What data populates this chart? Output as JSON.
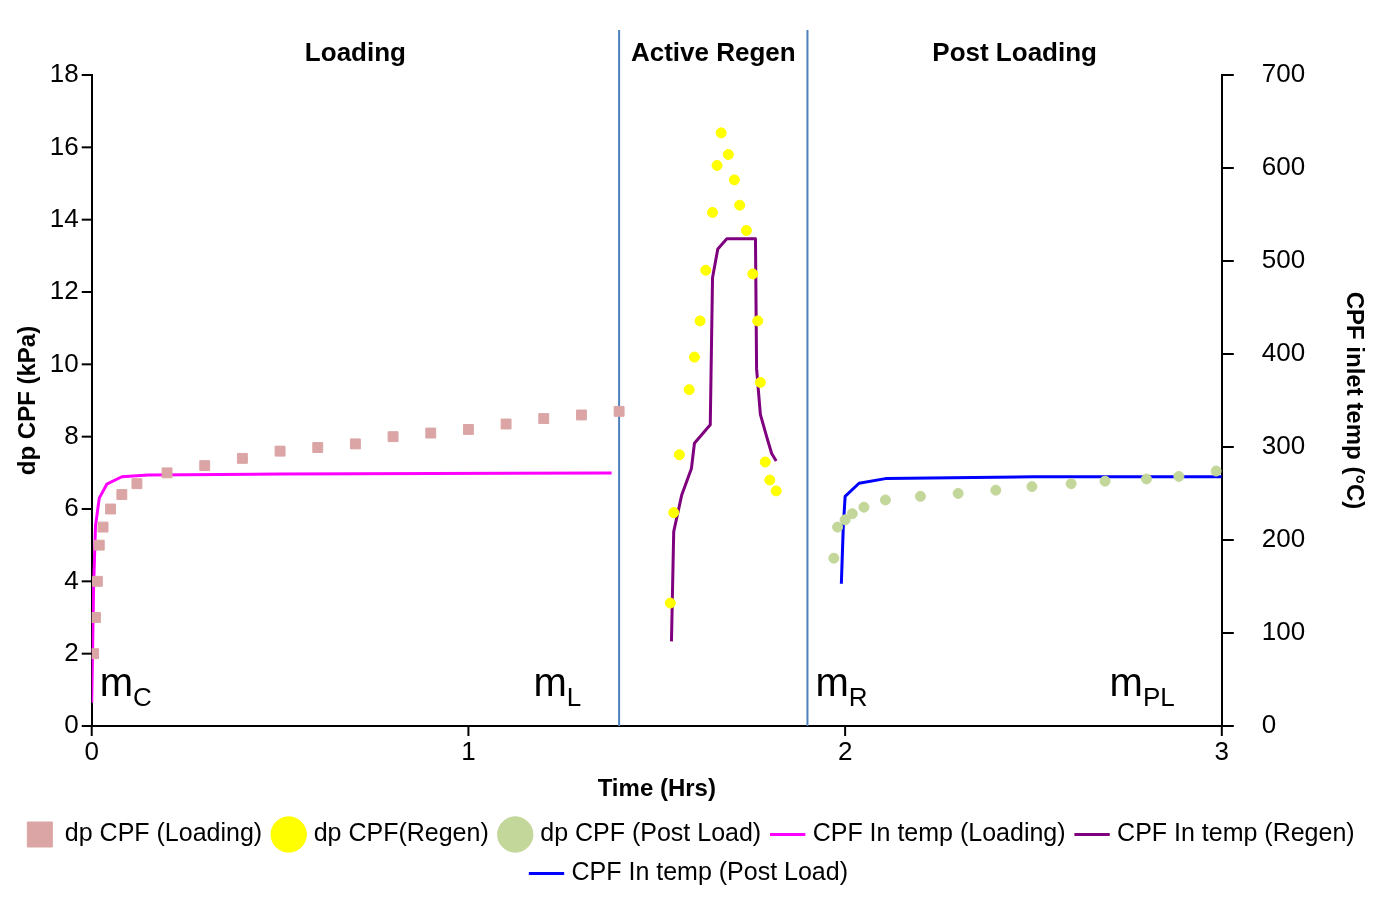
{
  "chart_data": {
    "type": "scatter",
    "xlabel": "Time (Hrs)",
    "ylabel": "dp CPF (kPa)",
    "y2label": "CPF inlet temp (°C)",
    "xlim": [
      0,
      3
    ],
    "xticks": [
      0,
      1,
      2,
      3
    ],
    "ylim": [
      0,
      18
    ],
    "yticks": [
      0,
      2,
      4,
      6,
      8,
      10,
      12,
      14,
      16,
      18
    ],
    "y2lim": [
      0,
      700
    ],
    "y2ticks": [
      0,
      100,
      200,
      300,
      400,
      500,
      600,
      700
    ],
    "grid": false,
    "legend": "bottom",
    "ref_lines": [
      {
        "axis": "x",
        "value": 1.4,
        "color": "#4f81bd"
      },
      {
        "axis": "x",
        "value": 1.9,
        "color": "#4f81bd"
      }
    ],
    "annotations": [
      "Loading",
      "Active Regen",
      "Post Loading",
      "m$_{C}$",
      "m$_{L}$",
      "m$_{R}$",
      "m$_{PL}$"
    ],
    "series": [
      {
        "name": "dp CPF (Loading)",
        "marker": "square",
        "color": "#dba5a5",
        "x": [
          0.005,
          0.01,
          0.015,
          0.02,
          0.03,
          0.05,
          0.08,
          0.12,
          0.2,
          0.3,
          0.4,
          0.5,
          0.6,
          0.7,
          0.8,
          0.9,
          1.0,
          1.1,
          1.2,
          1.3,
          1.4
        ],
        "values": [
          2.0,
          3.0,
          4.0,
          5.0,
          5.5,
          6.0,
          6.4,
          6.7,
          7.0,
          7.2,
          7.4,
          7.6,
          7.7,
          7.8,
          8.0,
          8.1,
          8.2,
          8.35,
          8.5,
          8.6,
          8.7
        ]
      },
      {
        "name": "dp CPF(Regen)",
        "marker": "circle",
        "color": "#ffff00",
        "x": [
          1.536,
          1.545,
          1.56,
          1.586,
          1.6,
          1.615,
          1.63,
          1.648,
          1.66,
          1.671,
          1.69,
          1.706,
          1.72,
          1.738,
          1.755,
          1.768,
          1.775,
          1.788,
          1.8,
          1.817
        ],
        "values": [
          3.4,
          5.9,
          7.5,
          9.3,
          10.2,
          11.2,
          12.6,
          14.2,
          15.5,
          16.4,
          15.8,
          15.1,
          14.4,
          13.7,
          12.5,
          11.2,
          9.5,
          7.3,
          6.8,
          6.5
        ]
      },
      {
        "name": "dp CPF (Post Load)",
        "marker": "circle",
        "color": "#c4d79b",
        "x": [
          1.97,
          1.98,
          2.0,
          2.019,
          2.05,
          2.107,
          2.2,
          2.3,
          2.4,
          2.496,
          2.6,
          2.69,
          2.8,
          2.886,
          2.985
        ],
        "values": [
          4.64,
          5.5,
          5.7,
          5.87,
          6.05,
          6.25,
          6.35,
          6.43,
          6.52,
          6.62,
          6.7,
          6.77,
          6.83,
          6.9,
          7.05
        ]
      },
      {
        "name": "CPF In temp (Loading)",
        "type": "line",
        "color": "#ff00ff",
        "axis": "y2",
        "x": [
          0,
          0.005,
          0.01,
          0.02,
          0.04,
          0.08,
          0.15,
          0.5,
          1.38
        ],
        "values": [
          25,
          150,
          215,
          245,
          260,
          268,
          270,
          271,
          272
        ]
      },
      {
        "name": "CPF In temp (Regen)",
        "type": "line",
        "color": "#7f007f",
        "axis": "y2",
        "x": [
          1.539,
          1.545,
          1.566,
          1.592,
          1.6,
          1.642,
          1.648,
          1.662,
          1.686,
          1.762,
          1.765,
          1.775,
          1.794,
          1.805,
          1.817
        ],
        "values": [
          91,
          209,
          248,
          277,
          304,
          324,
          482,
          513,
          524,
          524,
          384,
          335,
          308,
          293,
          285
        ]
      },
      {
        "name": "CPF In temp (Post Load)",
        "type": "line",
        "color": "#0000ff",
        "axis": "y2",
        "x": [
          1.99,
          1.995,
          2.0,
          2.037,
          2.107,
          2.5,
          3.0
        ],
        "values": [
          153,
          213,
          247,
          261,
          266,
          268,
          268
        ]
      }
    ]
  }
}
